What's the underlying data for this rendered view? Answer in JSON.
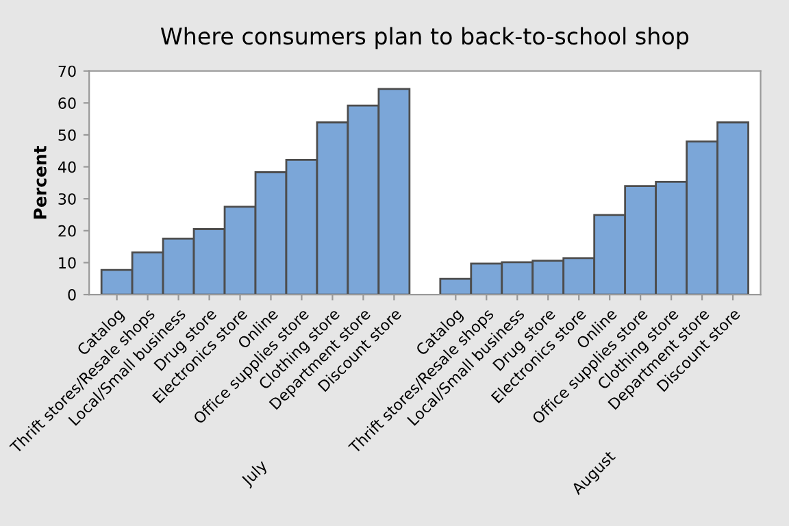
{
  "chart_data": {
    "type": "bar",
    "title": "Where consumers plan to back-to-school shop",
    "ylabel": "Percent",
    "categories": [
      "Catalog",
      "Thrift stores/Resale shops",
      "Local/Small business",
      "Drug store",
      "Electronics store",
      "Online",
      "Office supplies store",
      "Clothing store",
      "Department store",
      "Discount store",
      null,
      "Catalog",
      "Thrift stores/Resale shops",
      "Local/Small business",
      "Drug store",
      "Electronics store",
      "Online",
      "Office supplies store",
      "Clothing store",
      "Department store",
      "Discount store"
    ],
    "values": [
      7.7,
      13.2,
      17.5,
      20.5,
      27.5,
      38.3,
      42.2,
      53.9,
      59.2,
      64.4,
      null,
      4.9,
      9.7,
      10.1,
      10.6,
      11.4,
      24.9,
      34.0,
      35.3,
      47.9,
      53.9
    ],
    "color": "#7ba6d8",
    "ylim": [
      0,
      70
    ],
    "yticks": [
      0,
      10,
      20,
      30,
      40,
      50,
      60,
      70
    ],
    "annotations": [
      "July",
      "August"
    ],
    "grid": false,
    "legend": false
  }
}
